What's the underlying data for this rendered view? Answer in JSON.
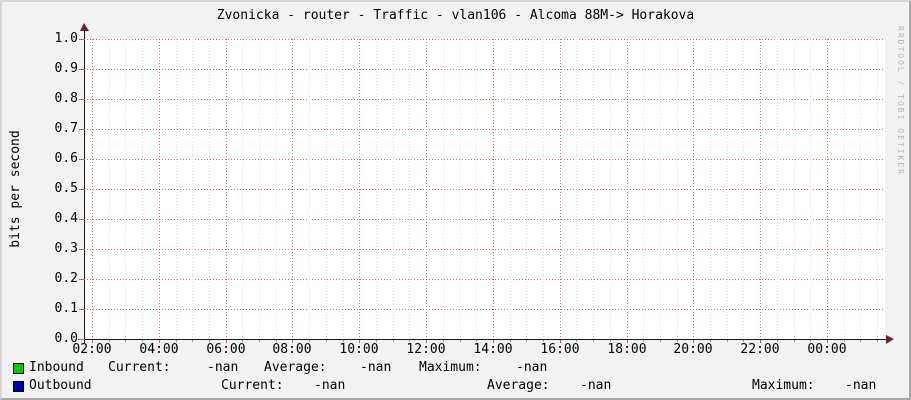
{
  "title": "Zvonicka - router - Traffic - vlan106 - Alcoma 88M-> Horakova",
  "watermark": "RRDTOOL / TOBI OETIKER",
  "y_axis": {
    "label": "bits per second",
    "ticks": [
      "1.0",
      "0.9",
      "0.8",
      "0.7",
      "0.6",
      "0.5",
      "0.4",
      "0.3",
      "0.2",
      "0.1",
      "0.0"
    ]
  },
  "x_axis": {
    "ticks": [
      "02:00",
      "04:00",
      "06:00",
      "08:00",
      "10:00",
      "12:00",
      "14:00",
      "16:00",
      "18:00",
      "20:00",
      "22:00",
      "00:00"
    ]
  },
  "legend": {
    "inbound": {
      "name": "Inbound",
      "current_label": "Current:",
      "current_value": "-nan",
      "average_label": "Average:",
      "average_value": "-nan",
      "maximum_label": "Maximum:",
      "maximum_value": "-nan"
    },
    "outbound": {
      "name": "Outbound",
      "current_label": "Current:",
      "current_value": "-nan",
      "average_label": "Average:",
      "average_value": "-nan",
      "maximum_label": "Maximum:",
      "maximum_value": "-nan"
    }
  },
  "colors": {
    "inbound": "#00CC00",
    "outbound": "#0000BB",
    "grid_major": "#e46a6a",
    "grid_minor": "#f6cfcf",
    "axis": "#1a1a1a",
    "arrow": "#7a1f1f",
    "watermark": "#b5b5b5",
    "plot_bg": "#ffffff",
    "canvas_bg": "#f2f2f2"
  },
  "chart_data": {
    "type": "line",
    "title": "Zvonicka - router - Traffic - vlan106 - Alcoma 88M-> Horakova",
    "xlabel": "",
    "ylabel": "bits per second",
    "ylim": [
      0.0,
      1.0
    ],
    "y_tick_step": 0.1,
    "x": [
      "02:00",
      "04:00",
      "06:00",
      "08:00",
      "10:00",
      "12:00",
      "14:00",
      "16:00",
      "18:00",
      "20:00",
      "22:00",
      "00:00"
    ],
    "grid": true,
    "legend_position": "bottom",
    "series": [
      {
        "name": "Inbound",
        "color": "#00CC00",
        "values": [],
        "current": "-nan",
        "average": "-nan",
        "maximum": "-nan"
      },
      {
        "name": "Outbound",
        "color": "#0000BB",
        "values": [],
        "current": "-nan",
        "average": "-nan",
        "maximum": "-nan"
      }
    ],
    "note": "Graph contains no plotted data; all series values are -nan (empty plot area)."
  }
}
